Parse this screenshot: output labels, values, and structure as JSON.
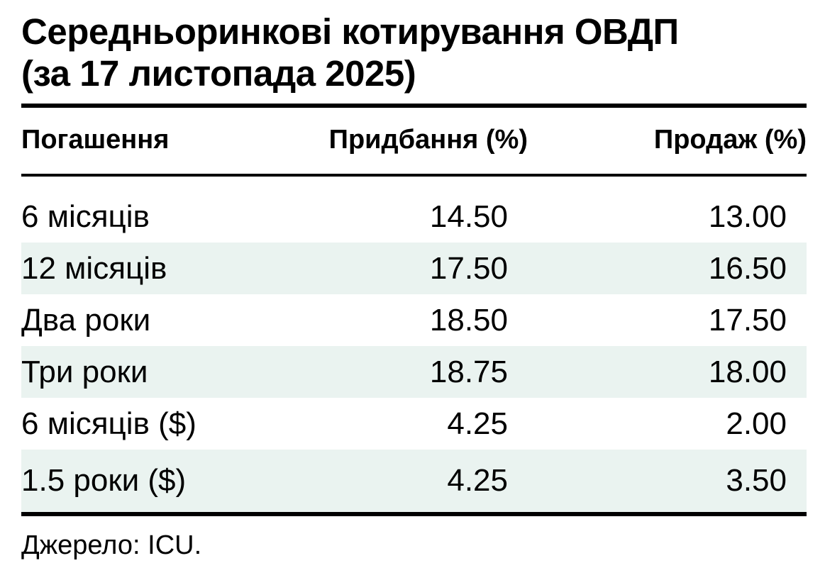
{
  "title": {
    "line1": "Середньоринкові котирування ОВДП",
    "line2": "(за 17 листопада 2025)"
  },
  "table": {
    "columns": [
      "Погашення",
      "Придбання (%)",
      "Продаж (%)"
    ],
    "rows": [
      {
        "maturity": "6 місяців",
        "bid": "14.50",
        "ask": "13.00"
      },
      {
        "maturity": "12 місяців",
        "bid": "17.50",
        "ask": "16.50"
      },
      {
        "maturity": "Два роки",
        "bid": "18.50",
        "ask": "17.50"
      },
      {
        "maturity": "Три роки",
        "bid": "18.75",
        "ask": "18.00"
      },
      {
        "maturity": "6 місяців ($)",
        "bid": "4.25",
        "ask": "2.00"
      },
      {
        "maturity": "1.5 роки ($)",
        "bid": "4.25",
        "ask": "3.50"
      }
    ]
  },
  "footer": {
    "source": "Джерело: ICU."
  },
  "colors": {
    "row_alt_background": "#eaf3f0",
    "rule": "#000000",
    "text": "#000000",
    "background": "#ffffff"
  },
  "chart_data": {
    "type": "table",
    "title": "Середньоринкові котирування ОВДП (за 17 листопада 2025)",
    "columns": [
      "Погашення",
      "Придбання (%)",
      "Продаж (%)"
    ],
    "categories": [
      "6 місяців",
      "12 місяців",
      "Два роки",
      "Три роки",
      "6 місяців ($)",
      "1.5 роки ($)"
    ],
    "series": [
      {
        "name": "Придбання (%)",
        "values": [
          14.5,
          17.5,
          18.5,
          18.75,
          4.25,
          4.25
        ]
      },
      {
        "name": "Продаж (%)",
        "values": [
          13.0,
          16.5,
          17.5,
          18.0,
          2.0,
          3.5
        ]
      }
    ],
    "source": "Джерело: ICU.",
    "layout_hints": {
      "zebra_striping": true,
      "alt_row_color": "#eaf3f0",
      "grid": "horizontal rules only"
    }
  }
}
